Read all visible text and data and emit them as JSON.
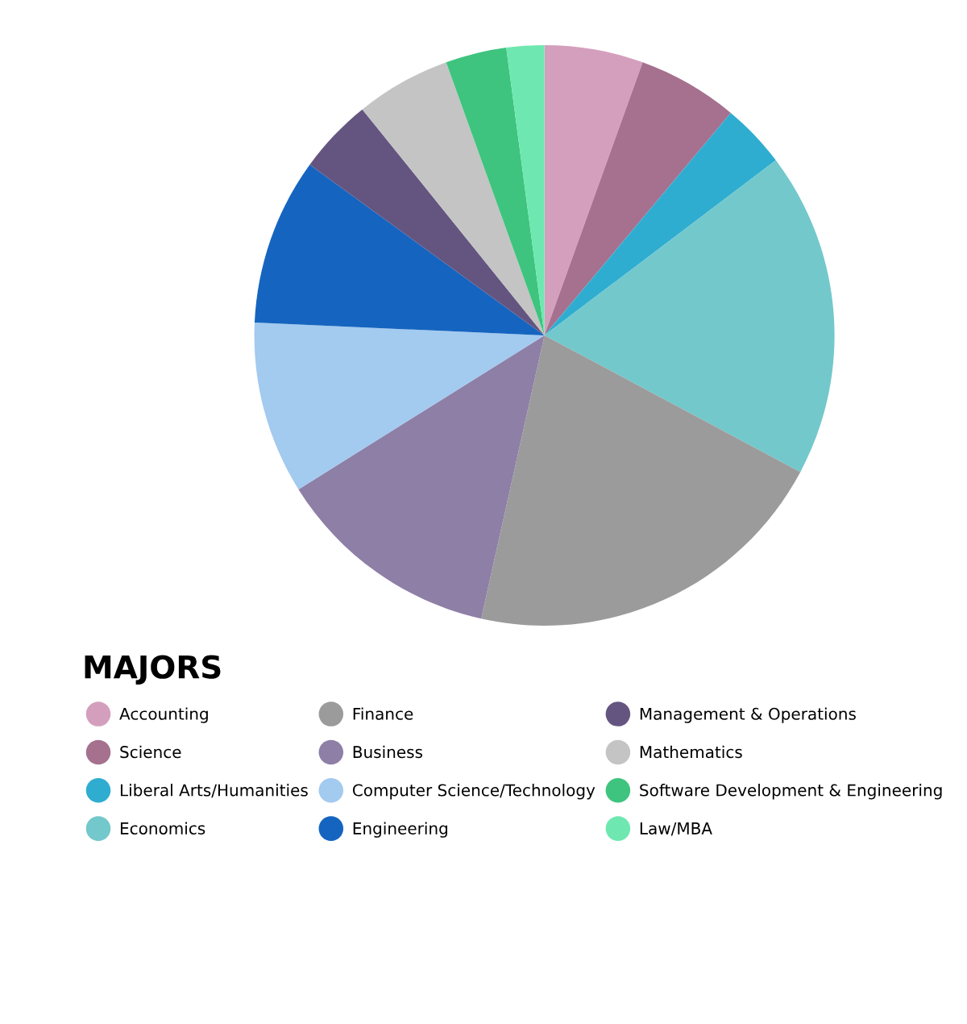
{
  "chart_data": {
    "type": "pie",
    "legend_title": "MAJORS",
    "legend": "bottom",
    "categories": [
      "Accounting",
      "Science",
      "Liberal Arts/Humanities",
      "Economics",
      "Finance",
      "Business",
      "Computer Science/Technology",
      "Engineering",
      "Management & Operations",
      "Mathematics",
      "Software Development & Engineering",
      "Law/MBA"
    ],
    "values": [
      5.5,
      5.6,
      3.6,
      18.1,
      20.7,
      12.6,
      9.6,
      9.3,
      4.2,
      5.3,
      3.4,
      2.1
    ],
    "colors": [
      "#d49fbd",
      "#a5718f",
      "#2fadd1",
      "#73c8cb",
      "#9b9b9b",
      "#8e7fa6",
      "#a3caef",
      "#1565c0",
      "#645580",
      "#c4c4c4",
      "#3ec47e",
      "#6ee8b0"
    ]
  }
}
